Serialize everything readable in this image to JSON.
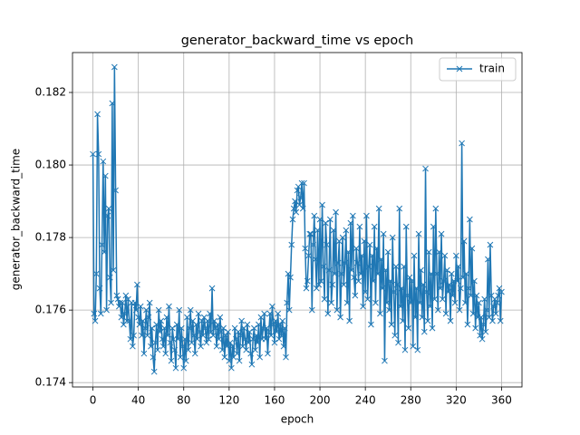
{
  "chart_data": {
    "type": "line",
    "title": "generator_backward_time vs epoch",
    "x_label": "epoch",
    "y_label": "generator_backward_time",
    "x": [
      0,
      1,
      2,
      3,
      4,
      5,
      6,
      7,
      8,
      9,
      10,
      11,
      12,
      13,
      14,
      15,
      16,
      17,
      18,
      19,
      20,
      21,
      22,
      23,
      24,
      25,
      26,
      27,
      28,
      29,
      30,
      31,
      32,
      33,
      34,
      35,
      36,
      37,
      38,
      39,
      40,
      41,
      42,
      43,
      44,
      45,
      46,
      47,
      48,
      49,
      50,
      51,
      52,
      53,
      54,
      55,
      56,
      57,
      58,
      59,
      60,
      61,
      62,
      63,
      64,
      65,
      66,
      67,
      68,
      69,
      70,
      71,
      72,
      73,
      74,
      75,
      76,
      77,
      78,
      79,
      80,
      81,
      82,
      83,
      84,
      85,
      86,
      87,
      88,
      89,
      90,
      91,
      92,
      93,
      94,
      95,
      96,
      97,
      98,
      99,
      100,
      101,
      102,
      103,
      104,
      105,
      106,
      107,
      108,
      109,
      110,
      111,
      112,
      113,
      114,
      115,
      116,
      117,
      118,
      119,
      120,
      121,
      122,
      123,
      124,
      125,
      126,
      127,
      128,
      129,
      130,
      131,
      132,
      133,
      134,
      135,
      136,
      137,
      138,
      139,
      140,
      141,
      142,
      143,
      144,
      145,
      146,
      147,
      148,
      149,
      150,
      151,
      152,
      153,
      154,
      155,
      156,
      157,
      158,
      159,
      160,
      161,
      162,
      163,
      164,
      165,
      166,
      167,
      168,
      169,
      170,
      171,
      172,
      173,
      174,
      175,
      176,
      177,
      178,
      179,
      180,
      181,
      182,
      183,
      184,
      185,
      186,
      187,
      188,
      189,
      190,
      191,
      192,
      193,
      194,
      195,
      196,
      197,
      198,
      199,
      200,
      201,
      202,
      203,
      204,
      205,
      206,
      207,
      208,
      209,
      210,
      211,
      212,
      213,
      214,
      215,
      216,
      217,
      218,
      219,
      220,
      221,
      222,
      223,
      224,
      225,
      226,
      227,
      228,
      229,
      230,
      231,
      232,
      233,
      234,
      235,
      236,
      237,
      238,
      239,
      240,
      241,
      242,
      243,
      244,
      245,
      246,
      247,
      248,
      249,
      250,
      251,
      252,
      253,
      254,
      255,
      256,
      257,
      258,
      259,
      260,
      261,
      262,
      263,
      264,
      265,
      266,
      267,
      268,
      269,
      270,
      271,
      272,
      273,
      274,
      275,
      276,
      277,
      278,
      279,
      280,
      281,
      282,
      283,
      284,
      285,
      286,
      287,
      288,
      289,
      290,
      291,
      292,
      293,
      294,
      295,
      296,
      297,
      298,
      299,
      300,
      301,
      302,
      303,
      304,
      305,
      306,
      307,
      308,
      309,
      310,
      311,
      312,
      313,
      314,
      315,
      316,
      317,
      318,
      319,
      320,
      321,
      322,
      323,
      324,
      325,
      326,
      327,
      328,
      329,
      330,
      331,
      332,
      333,
      334,
      335,
      336,
      337,
      338,
      339,
      340,
      341,
      342,
      343,
      344,
      345,
      346,
      347,
      348,
      349,
      350,
      351,
      352,
      353,
      354,
      355,
      356,
      357,
      358,
      359,
      360
    ],
    "series": [
      {
        "name": "train",
        "color": "#1f77b4",
        "values": [
          0.1803,
          0.1759,
          0.1757,
          0.177,
          0.1814,
          0.1803,
          0.1766,
          0.1759,
          0.1778,
          0.1801,
          0.1776,
          0.1797,
          0.176,
          0.1786,
          0.1788,
          0.1769,
          0.1762,
          0.1817,
          0.1771,
          0.1827,
          0.1793,
          0.1764,
          0.1763,
          0.1761,
          0.1762,
          0.1758,
          0.1762,
          0.1756,
          0.1759,
          0.1764,
          0.1757,
          0.1763,
          0.1757,
          0.1752,
          0.1762,
          0.175,
          0.1753,
          0.1762,
          0.176,
          0.1767,
          0.1758,
          0.1756,
          0.1761,
          0.1753,
          0.1757,
          0.1748,
          0.1755,
          0.176,
          0.1753,
          0.1758,
          0.1762,
          0.175,
          0.1755,
          0.1747,
          0.1743,
          0.1751,
          0.1756,
          0.1749,
          0.176,
          0.1754,
          0.1757,
          0.1752,
          0.175,
          0.1755,
          0.1748,
          0.1758,
          0.1753,
          0.1761,
          0.1751,
          0.1746,
          0.1755,
          0.1752,
          0.1749,
          0.1744,
          0.1756,
          0.1752,
          0.176,
          0.1747,
          0.1755,
          0.175,
          0.1744,
          0.1752,
          0.1746,
          0.1758,
          0.1749,
          0.1755,
          0.176,
          0.1751,
          0.1757,
          0.1753,
          0.1748,
          0.1756,
          0.1752,
          0.1759,
          0.1754,
          0.175,
          0.1757,
          0.1753,
          0.1758,
          0.1755,
          0.1751,
          0.1757,
          0.1752,
          0.1759,
          0.1754,
          0.1766,
          0.1753,
          0.1757,
          0.1755,
          0.175,
          0.1756,
          0.1752,
          0.1758,
          0.1754,
          0.1749,
          0.1755,
          0.1747,
          0.1753,
          0.175,
          0.1754,
          0.1746,
          0.1751,
          0.1744,
          0.175,
          0.1747,
          0.1755,
          0.1752,
          0.1748,
          0.1754,
          0.1746,
          0.1753,
          0.1757,
          0.175,
          0.1755,
          0.1752,
          0.1749,
          0.1756,
          0.1751,
          0.1754,
          0.1748,
          0.1745,
          0.1752,
          0.1755,
          0.1749,
          0.1753,
          0.1751,
          0.1756,
          0.1747,
          0.1758,
          0.1752,
          0.1755,
          0.1759,
          0.1752,
          0.1755,
          0.1748,
          0.1754,
          0.1759,
          0.1753,
          0.1761,
          0.1756,
          0.1751,
          0.1757,
          0.1754,
          0.1759,
          0.1752,
          0.1756,
          0.1753,
          0.1757,
          0.175,
          0.1755,
          0.1747,
          0.1762,
          0.177,
          0.176,
          0.1769,
          0.1778,
          0.1785,
          0.1788,
          0.179,
          0.1787,
          0.1793,
          0.1794,
          0.1789,
          0.1791,
          0.1795,
          0.1788,
          0.1795,
          0.1777,
          0.1766,
          0.1768,
          0.1775,
          0.1781,
          0.1781,
          0.176,
          0.1778,
          0.1786,
          0.1774,
          0.1766,
          0.1782,
          0.1767,
          0.1785,
          0.1768,
          0.1789,
          0.1772,
          0.1763,
          0.1784,
          0.1778,
          0.1759,
          0.1771,
          0.1785,
          0.1762,
          0.1767,
          0.1782,
          0.177,
          0.1787,
          0.176,
          0.1773,
          0.1779,
          0.1758,
          0.177,
          0.178,
          0.1767,
          0.1773,
          0.1782,
          0.1762,
          0.1776,
          0.1757,
          0.1784,
          0.1771,
          0.1786,
          0.1769,
          0.1764,
          0.1777,
          0.1773,
          0.1768,
          0.1783,
          0.177,
          0.1775,
          0.1761,
          0.1779,
          0.1765,
          0.1786,
          0.1763,
          0.1772,
          0.1778,
          0.1756,
          0.1775,
          0.1768,
          0.1783,
          0.1762,
          0.1777,
          0.177,
          0.1788,
          0.1759,
          0.1774,
          0.1766,
          0.1781,
          0.1746,
          0.1771,
          0.1762,
          0.1776,
          0.176,
          0.1768,
          0.1756,
          0.178,
          0.1765,
          0.1753,
          0.1772,
          0.1767,
          0.1751,
          0.1788,
          0.1761,
          0.1766,
          0.1757,
          0.1772,
          0.1749,
          0.1783,
          0.1764,
          0.1755,
          0.1769,
          0.1762,
          0.1768,
          0.175,
          0.1775,
          0.1758,
          0.1766,
          0.1749,
          0.1781,
          0.1762,
          0.1771,
          0.1758,
          0.1767,
          0.1754,
          0.1799,
          0.1765,
          0.1757,
          0.1776,
          0.1761,
          0.177,
          0.1755,
          0.1783,
          0.1763,
          0.1788,
          0.177,
          0.176,
          0.1776,
          0.1766,
          0.1781,
          0.1763,
          0.1768,
          0.1775,
          0.1759,
          0.1771,
          0.1765,
          0.1767,
          0.1757,
          0.177,
          0.1764,
          0.1768,
          0.1762,
          0.1775,
          0.1768,
          0.1772,
          0.176,
          0.1766,
          0.1806,
          0.1769,
          0.1779,
          0.1762,
          0.177,
          0.1756,
          0.1766,
          0.1785,
          0.1764,
          0.1777,
          0.1759,
          0.1768,
          0.1755,
          0.1764,
          0.1758,
          0.1762,
          0.1753,
          0.1758,
          0.1752,
          0.1756,
          0.1763,
          0.1754,
          0.176,
          0.1774,
          0.1758,
          0.1778,
          0.1764,
          0.1757,
          0.1761,
          0.1763,
          0.1759,
          0.1762,
          0.1764,
          0.1766,
          0.1757,
          0.1765
        ]
      }
    ],
    "xlim": [
      -18,
      378
    ],
    "ylim": [
      0.17388,
      0.1831
    ],
    "xticks": [
      0,
      40,
      80,
      120,
      160,
      200,
      240,
      280,
      320,
      360
    ],
    "yticks": [
      0.174,
      0.176,
      0.178,
      {
        "value": 0.18,
        "label": "0.180"
      },
      0.182
    ],
    "grid": true,
    "legend": "upper right",
    "marker": "x"
  }
}
